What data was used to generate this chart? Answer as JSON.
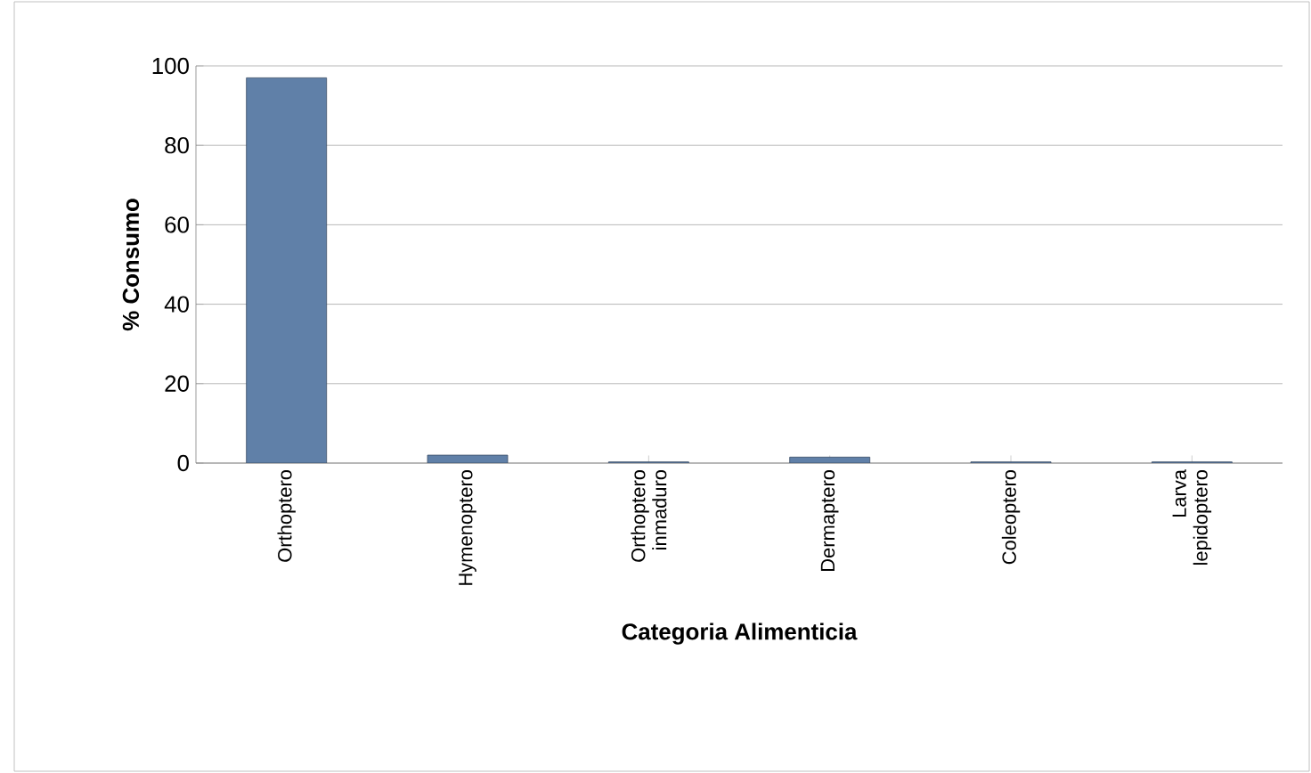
{
  "chart_data": {
    "type": "bar",
    "xlabel": "Categoria Alimenticia",
    "ylabel": "% Consumo",
    "categories": [
      "Orthoptero",
      "Hymenoptero",
      "Orthoptero inmaduro",
      "Dermaptero",
      "Coleoptero",
      "Larva lepidoptero"
    ],
    "values": [
      97,
      2,
      0.3,
      1.5,
      0.3,
      0.3
    ],
    "color": "#6080a8",
    "ylim": [
      0,
      100
    ],
    "yticks": [
      0,
      20,
      40,
      60,
      80,
      100
    ],
    "grid": "y"
  }
}
